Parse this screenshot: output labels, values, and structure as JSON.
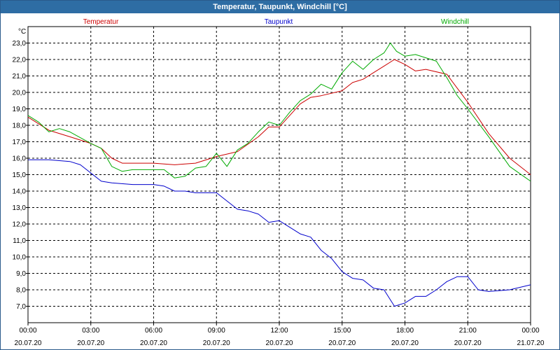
{
  "window": {
    "title": "Temperatur, Taupunkt, Windchill [°C]"
  },
  "colors": {
    "temperature": "#cc0000",
    "dewpoint": "#0000cc",
    "windchill": "#00aa00",
    "grid": "#000000",
    "titlebar": "#2e6da4"
  },
  "chart_data": {
    "type": "line",
    "title": "Temperatur, Taupunkt, Windchill [°C]",
    "ylabel": "°C",
    "ylim": [
      6.0,
      24.0
    ],
    "xlim": [
      0,
      24
    ],
    "yticks": [
      7.0,
      8.0,
      9.0,
      10.0,
      11.0,
      12.0,
      13.0,
      14.0,
      15.0,
      16.0,
      17.0,
      18.0,
      19.0,
      20.0,
      21.0,
      22.0,
      23.0
    ],
    "ytick_labels": [
      "7,0",
      "8,0",
      "9,0",
      "10,0",
      "11,0",
      "12,0",
      "13,0",
      "14,0",
      "15,0",
      "16,0",
      "17,0",
      "18,0",
      "19,0",
      "20,0",
      "21,0",
      "22,0",
      "23,0"
    ],
    "xticks": [
      {
        "hour": 0,
        "time": "00:00",
        "date": "20.07.20"
      },
      {
        "hour": 3,
        "time": "03:00",
        "date": "20.07.20"
      },
      {
        "hour": 6,
        "time": "06:00",
        "date": "20.07.20"
      },
      {
        "hour": 9,
        "time": "09:00",
        "date": "20.07.20"
      },
      {
        "hour": 12,
        "time": "12:00",
        "date": "20.07.20"
      },
      {
        "hour": 15,
        "time": "15:00",
        "date": "20.07.20"
      },
      {
        "hour": 18,
        "time": "18:00",
        "date": "20.07.20"
      },
      {
        "hour": 21,
        "time": "21:00",
        "date": "20.07.20"
      },
      {
        "hour": 24,
        "time": "00:00",
        "date": "21.07.20"
      }
    ],
    "grid": true,
    "series": [
      {
        "name": "Temperatur",
        "color": "#cc0000",
        "x": [
          0,
          1,
          2,
          3,
          3.5,
          4,
          4.5,
          5,
          6,
          7,
          8,
          9,
          10,
          11,
          11.5,
          12,
          13,
          13.5,
          14,
          15,
          15.5,
          16,
          16.5,
          17,
          17.5,
          18,
          18.5,
          19,
          20,
          21,
          22,
          23,
          24
        ],
        "values": [
          18.5,
          17.7,
          17.3,
          16.9,
          16.6,
          16.0,
          15.7,
          15.7,
          15.7,
          15.6,
          15.7,
          16.1,
          16.4,
          17.3,
          17.9,
          17.9,
          19.3,
          19.7,
          19.8,
          20.1,
          20.6,
          20.8,
          21.2,
          21.6,
          22.0,
          21.7,
          21.3,
          21.4,
          21.1,
          19.4,
          17.5,
          16.0,
          15.0
        ]
      },
      {
        "name": "Taupunkt",
        "color": "#0000cc",
        "x": [
          0,
          1,
          2,
          2.5,
          3,
          3.5,
          4,
          5,
          6,
          6.5,
          7,
          7.5,
          8,
          9,
          9.5,
          10,
          10.5,
          11,
          11.5,
          12,
          13,
          13.5,
          14,
          14.5,
          15,
          15.5,
          16,
          16.5,
          17,
          17.5,
          18,
          18.5,
          19,
          19.5,
          20,
          20.5,
          21,
          21.5,
          22,
          23,
          24
        ],
        "values": [
          15.9,
          15.9,
          15.8,
          15.6,
          15.1,
          14.6,
          14.5,
          14.4,
          14.4,
          14.3,
          14.0,
          14.0,
          13.9,
          13.9,
          13.4,
          12.9,
          12.8,
          12.6,
          12.1,
          12.2,
          11.4,
          11.2,
          10.4,
          9.9,
          9.1,
          8.7,
          8.6,
          8.1,
          8.0,
          7.0,
          7.2,
          7.6,
          7.6,
          8.0,
          8.5,
          8.8,
          8.8,
          8.0,
          7.9,
          8.0,
          8.3
        ]
      },
      {
        "name": "Windchill",
        "color": "#00aa00",
        "x": [
          0,
          0.5,
          1,
          1.5,
          2,
          3,
          3.5,
          4,
          4.5,
          5,
          5.5,
          6,
          6.5,
          7,
          7.5,
          8,
          8.5,
          9,
          9.5,
          10,
          10.5,
          11,
          11.5,
          12,
          12.5,
          13,
          13.5,
          14,
          14.5,
          15,
          15.5,
          16,
          16.5,
          17,
          17.3,
          17.6,
          18,
          18.5,
          19,
          19.5,
          20,
          20.5,
          21,
          22,
          23,
          24
        ],
        "values": [
          18.6,
          18.2,
          17.6,
          17.8,
          17.6,
          16.9,
          16.6,
          15.5,
          15.2,
          15.3,
          15.3,
          15.3,
          15.3,
          14.8,
          14.9,
          15.4,
          15.5,
          16.3,
          15.5,
          16.5,
          16.9,
          17.6,
          18.2,
          18.0,
          18.8,
          19.5,
          19.9,
          20.5,
          20.2,
          21.2,
          21.9,
          21.4,
          22.0,
          22.4,
          23.0,
          22.5,
          22.2,
          22.3,
          22.1,
          21.9,
          20.9,
          19.8,
          19.0,
          17.3,
          15.5,
          14.6
        ]
      }
    ]
  }
}
